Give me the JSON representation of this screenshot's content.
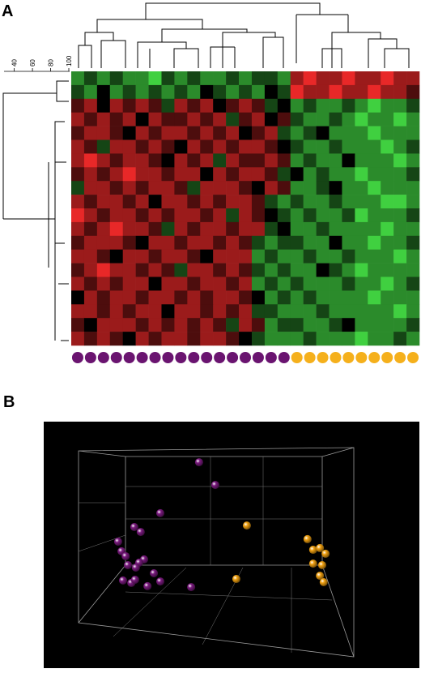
{
  "chart_data": [
    {
      "type": "heatmap",
      "title": "A",
      "vlim": [
        -3,
        3
      ],
      "colors": {
        "low": "#40d040",
        "mid": "#000000",
        "high": "#e82828"
      },
      "groups": [
        {
          "color": "#6a1470",
          "count": 17
        },
        {
          "color": "#f5b01c",
          "count": 10
        }
      ],
      "xlim": [
        35,
        100
      ],
      "xticks": [
        40,
        60,
        80,
        100
      ],
      "values": [
        [
          -2,
          -1,
          -2,
          -1,
          -2,
          -2,
          -3,
          -1,
          -2,
          -1,
          -2,
          -2,
          -1,
          -2,
          -1,
          -1,
          -2,
          2,
          3,
          2,
          2,
          3,
          2,
          2,
          3,
          2,
          2
        ],
        [
          -1,
          -2,
          0,
          -2,
          -1,
          -2,
          -1,
          -2,
          -1,
          -2,
          0,
          -1,
          -2,
          -1,
          -2,
          0,
          -1,
          3,
          2,
          2,
          3,
          2,
          2,
          3,
          2,
          2,
          1
        ],
        [
          1,
          2,
          0,
          2,
          1,
          2,
          1,
          -1,
          2,
          1,
          2,
          0,
          1,
          2,
          1,
          -1,
          0,
          -2,
          -1,
          -2,
          -2,
          -1,
          -2,
          -3,
          -2,
          -2,
          -1
        ],
        [
          2,
          1,
          2,
          1,
          2,
          0,
          2,
          1,
          1,
          2,
          1,
          2,
          -1,
          1,
          2,
          0,
          1,
          -1,
          -2,
          -2,
          -1,
          -2,
          -3,
          -2,
          -2,
          -3,
          -2
        ],
        [
          1,
          2,
          2,
          1,
          0,
          2,
          1,
          2,
          2,
          1,
          2,
          1,
          2,
          0,
          1,
          2,
          -1,
          -2,
          -1,
          0,
          -2,
          -2,
          -2,
          -3,
          -2,
          -2,
          -2
        ],
        [
          2,
          1,
          -1,
          2,
          2,
          1,
          2,
          1,
          0,
          2,
          1,
          2,
          1,
          2,
          2,
          1,
          0,
          -1,
          -2,
          -2,
          -1,
          -2,
          -2,
          -2,
          -3,
          -2,
          -1
        ],
        [
          2,
          3,
          2,
          1,
          2,
          2,
          1,
          0,
          2,
          1,
          2,
          -1,
          2,
          1,
          1,
          2,
          1,
          -2,
          -1,
          -2,
          -2,
          0,
          -2,
          -2,
          -2,
          -3,
          -2
        ],
        [
          1,
          2,
          1,
          2,
          3,
          2,
          2,
          1,
          2,
          2,
          0,
          2,
          1,
          2,
          2,
          1,
          -1,
          0,
          -2,
          -1,
          -2,
          -2,
          -3,
          -2,
          -2,
          -2,
          -1
        ],
        [
          -1,
          2,
          2,
          1,
          2,
          1,
          2,
          2,
          1,
          -1,
          2,
          2,
          2,
          1,
          0,
          2,
          1,
          -2,
          -2,
          -1,
          0,
          -2,
          -2,
          -3,
          -2,
          -2,
          -2
        ],
        [
          2,
          1,
          2,
          2,
          1,
          2,
          0,
          2,
          2,
          1,
          2,
          1,
          2,
          2,
          1,
          -1,
          -2,
          -1,
          -2,
          -2,
          -1,
          -2,
          -2,
          -2,
          -3,
          -3,
          -2
        ],
        [
          3,
          2,
          1,
          2,
          2,
          1,
          2,
          1,
          2,
          2,
          1,
          2,
          -1,
          2,
          1,
          0,
          -1,
          -2,
          -1,
          -2,
          -2,
          -1,
          -3,
          -2,
          -2,
          -2,
          -1
        ],
        [
          2,
          1,
          2,
          3,
          2,
          2,
          1,
          -1,
          2,
          1,
          2,
          2,
          1,
          2,
          2,
          -1,
          0,
          -2,
          -2,
          -1,
          -2,
          -2,
          -2,
          -2,
          -3,
          -2,
          -2
        ],
        [
          1,
          2,
          2,
          2,
          1,
          0,
          2,
          2,
          1,
          2,
          2,
          1,
          2,
          1,
          -1,
          -2,
          -1,
          -1,
          -2,
          -2,
          0,
          -2,
          -2,
          -3,
          -2,
          -2,
          -1
        ],
        [
          2,
          2,
          1,
          0,
          2,
          2,
          1,
          2,
          2,
          1,
          0,
          2,
          2,
          2,
          -2,
          -1,
          -2,
          -2,
          -1,
          -2,
          -2,
          -1,
          -2,
          -2,
          -2,
          -3,
          -2
        ],
        [
          1,
          2,
          3,
          2,
          2,
          1,
          2,
          1,
          -1,
          2,
          2,
          1,
          2,
          1,
          -1,
          -2,
          -1,
          -2,
          -2,
          0,
          -1,
          -2,
          -3,
          -2,
          -2,
          -2,
          -2
        ],
        [
          2,
          1,
          2,
          1,
          2,
          2,
          0,
          2,
          2,
          1,
          2,
          2,
          1,
          2,
          -2,
          -1,
          -2,
          -1,
          -2,
          -2,
          -2,
          -1,
          -2,
          -2,
          -3,
          -2,
          -1
        ],
        [
          0,
          2,
          1,
          2,
          2,
          1,
          2,
          2,
          1,
          2,
          1,
          2,
          2,
          1,
          0,
          -2,
          -1,
          -2,
          -1,
          -2,
          -2,
          -2,
          -2,
          -3,
          -2,
          -2,
          -2
        ],
        [
          2,
          2,
          1,
          2,
          1,
          2,
          2,
          0,
          2,
          2,
          1,
          2,
          1,
          2,
          -1,
          -1,
          -2,
          -2,
          -2,
          -1,
          -2,
          -2,
          -2,
          -2,
          -2,
          -3,
          -2
        ],
        [
          1,
          0,
          2,
          2,
          2,
          1,
          2,
          1,
          2,
          1,
          2,
          1,
          -1,
          2,
          1,
          -2,
          -1,
          -1,
          -2,
          -2,
          -1,
          0,
          -2,
          -2,
          -2,
          -2,
          -1
        ],
        [
          2,
          1,
          2,
          1,
          0,
          2,
          1,
          2,
          2,
          1,
          2,
          2,
          1,
          0,
          -1,
          -2,
          -2,
          -2,
          -1,
          -2,
          -2,
          -2,
          -3,
          -2,
          -2,
          -1,
          -2
        ]
      ]
    },
    {
      "type": "scatter",
      "title": "B",
      "xlim": [
        0,
        100
      ],
      "ylim": [
        0,
        100
      ],
      "series": [
        {
          "color": "#7a1a7e",
          "x": [
            41.7,
            46.0,
            31.4,
            24.5,
            26.2,
            20.2,
            21.1,
            22.2,
            27.1,
            25.8,
            24.9,
            22.8,
            29.7,
            21.5,
            23.7,
            24.7,
            28.0,
            31.4,
            39.6
          ],
          "values": [
            82.6,
            73.4,
            62.0,
            56.4,
            54.4,
            50.5,
            46.6,
            44.6,
            43.3,
            42.0,
            40.0,
            41.0,
            37.7,
            34.8,
            33.8,
            35.1,
            32.5,
            34.4,
            32.1
          ]
        },
        {
          "color": "#f0a010",
          "x": [
            54.4,
            70.5,
            72.0,
            73.8,
            75.3,
            72.0,
            74.4,
            73.8,
            74.8,
            51.6
          ],
          "values": [
            57.0,
            51.5,
            47.2,
            47.9,
            45.6,
            41.6,
            41.0,
            36.7,
            34.1,
            35.4
          ]
        }
      ]
    }
  ]
}
